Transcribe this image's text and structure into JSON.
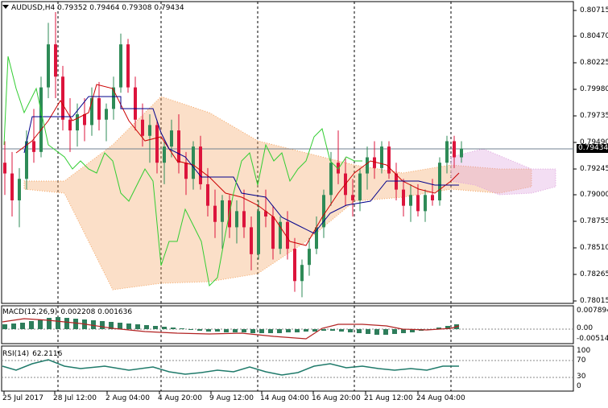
{
  "header": {
    "symbol": "AUDUSD,H4",
    "ohlc": "0.79352 0.79464 0.79308 0.79434"
  },
  "price_scale": [
    "0.80715",
    "0.80470",
    "0.80225",
    "0.79980",
    "0.79735",
    "0.79490",
    "0.79245",
    "0.79000",
    "0.78755",
    "0.78510",
    "0.78265",
    "0.78015"
  ],
  "current_price": "0.79434",
  "macd": {
    "label": "MACD(12,26,9)",
    "values": "0.002208 0.001636",
    "scale": [
      "0.007894",
      "0.00",
      "-0.005141"
    ]
  },
  "rsi": {
    "label": "RSI(14)",
    "value": "62.2116",
    "scale": [
      "100",
      "70",
      "30",
      "0"
    ]
  },
  "time_axis": [
    "25 Jul 2017",
    "28 Jul 12:00",
    "2 Aug 04:00",
    "4 Aug 20:00",
    "9 Aug 12:00",
    "14 Aug 04:00",
    "16 Aug 20:00",
    "21 Aug 12:00",
    "24 Aug 04:00"
  ],
  "colors": {
    "bull": "#2e8b57",
    "bear": "#dc143c",
    "tenkan": "#cc0000",
    "kijun": "#00008b",
    "chikou": "#32cd32",
    "cloud": "#f4a460",
    "cloud2": "#dda0dd",
    "hist": "#2e7d5b",
    "signal": "#b22222",
    "rsi": "#1f7a6a"
  }
}
